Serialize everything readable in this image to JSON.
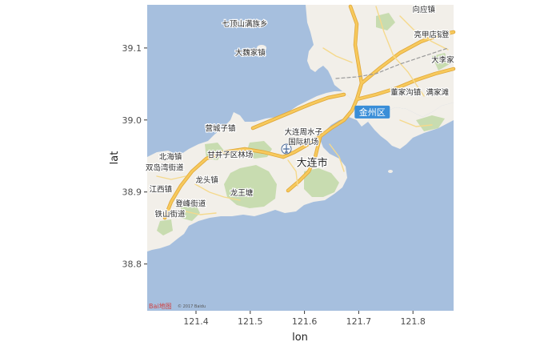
{
  "map": {
    "xlabel": "lon",
    "ylabel": "lat",
    "x_ticks": [
      "121.4",
      "121.5",
      "121.6",
      "121.7",
      "121.8"
    ],
    "y_ticks": [
      "39.1",
      "39.0",
      "38.9",
      "38.8"
    ],
    "x_tick_values": [
      121.4,
      121.5,
      121.6,
      121.7,
      121.8
    ],
    "y_tick_values": [
      39.1,
      39.0,
      38.9,
      38.8
    ],
    "xlim": [
      121.31,
      121.875
    ],
    "ylim": [
      38.735,
      39.16
    ],
    "colors": {
      "sea": "#a6bfde",
      "land": "#f2efe9",
      "park": "#c8dcb0",
      "road": "#f7c95c",
      "road_outline": "#e0a83a",
      "district_badge": "#3a8ed8"
    },
    "places": [
      {
        "name": "向应镇",
        "lon": 121.82,
        "lat": 39.15
      },
      {
        "name": "七顶山满族乡",
        "lon": 121.49,
        "lat": 39.13
      },
      {
        "name": "亮甲店镇",
        "lon": 121.83,
        "lat": 39.115
      },
      {
        "name": "登",
        "lon": 121.86,
        "lat": 39.115
      },
      {
        "name": "大魏家镇",
        "lon": 121.5,
        "lat": 39.09
      },
      {
        "name": "大李家",
        "lon": 121.855,
        "lat": 39.08
      },
      {
        "name": "董家沟镇",
        "lon": 121.787,
        "lat": 39.035
      },
      {
        "name": "满家滩",
        "lon": 121.845,
        "lat": 39.035
      },
      {
        "name": "营城子镇",
        "lon": 121.445,
        "lat": 38.985
      },
      {
        "name": "大连周水子",
        "lon": 121.598,
        "lat": 38.98
      },
      {
        "name": "国际机场",
        "lon": 121.598,
        "lat": 38.966
      },
      {
        "name": "甘井子区林场",
        "lon": 121.463,
        "lat": 38.948
      },
      {
        "name": "北海镇",
        "lon": 121.353,
        "lat": 38.945
      },
      {
        "name": "大连市",
        "lon": 121.614,
        "lat": 38.936
      },
      {
        "name": "双岛湾街道",
        "lon": 121.342,
        "lat": 38.93
      },
      {
        "name": "龙头镇",
        "lon": 121.42,
        "lat": 38.913
      },
      {
        "name": "江西镇",
        "lon": 121.335,
        "lat": 38.9
      },
      {
        "name": "龙王塘",
        "lon": 121.484,
        "lat": 38.895
      },
      {
        "name": "登峰街道",
        "lon": 121.39,
        "lat": 38.88
      },
      {
        "name": "铁山街道",
        "lon": 121.352,
        "lat": 38.866
      }
    ],
    "district_badge": {
      "name": "金州区",
      "lon": 121.725,
      "lat": 39.011
    },
    "attribution": {
      "logo": "Bai地图",
      "text": "© 2017 Baidu"
    }
  }
}
